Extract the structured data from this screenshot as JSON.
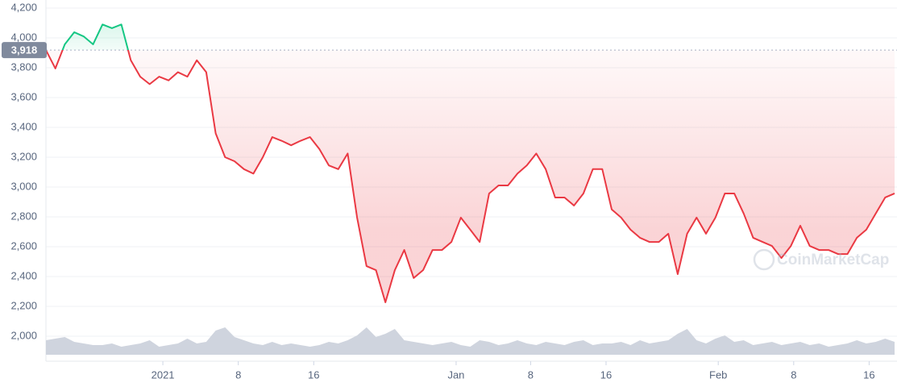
{
  "chart_data": {
    "type": "line",
    "watermark": "CoinMarketCap",
    "baseline": {
      "value": 3918,
      "label": "3,918"
    },
    "x": [
      0,
      1,
      2,
      3,
      4,
      5,
      6,
      7,
      8,
      9,
      10,
      11,
      12,
      13,
      14,
      15,
      16,
      17,
      18,
      19,
      20,
      21,
      22,
      23,
      24,
      25,
      26,
      27,
      28,
      29,
      30,
      31,
      32,
      33,
      34,
      35,
      36,
      37,
      38,
      39,
      40,
      41,
      42,
      43,
      44,
      45,
      46,
      47,
      48,
      49,
      50,
      51,
      52,
      53,
      54,
      55,
      56,
      57,
      58,
      59,
      60,
      61,
      62,
      63,
      64,
      65,
      66,
      67,
      68,
      69,
      70,
      71,
      72,
      73,
      74,
      75,
      76,
      77,
      78,
      79,
      80,
      81,
      82,
      83,
      84,
      85,
      86,
      87,
      88,
      89,
      90
    ],
    "series": [
      {
        "color": "#ea3943",
        "color_above": "#16c784",
        "values": [
          3918,
          3795,
          3957,
          4038,
          4010,
          3957,
          4090,
          4065,
          4090,
          3850,
          3740,
          3690,
          3740,
          3715,
          3770,
          3740,
          3850,
          3770,
          3360,
          3200,
          3173,
          3120,
          3090,
          3200,
          3335,
          3310,
          3280,
          3310,
          3335,
          3255,
          3145,
          3120,
          3225,
          2795,
          2470,
          2443,
          2227,
          2443,
          2578,
          2390,
          2443,
          2578,
          2578,
          2632,
          2795,
          2714,
          2632,
          2957,
          3011,
          3011,
          3090,
          3145,
          3225,
          3120,
          2930,
          2930,
          2876,
          2957,
          3120,
          3120,
          2850,
          2795,
          2714,
          2660,
          2632,
          2632,
          2687,
          2416,
          2687,
          2795,
          2687,
          2795,
          2957,
          2957,
          2822,
          2660,
          2632,
          2605,
          2524,
          2605,
          2741,
          2605,
          2578,
          2578,
          2551,
          2551,
          2660,
          2714,
          2822,
          2930,
          2957
        ]
      }
    ],
    "volume": {
      "color": "#cfd4de",
      "values": [
        18,
        20,
        22,
        16,
        14,
        12,
        12,
        14,
        10,
        12,
        14,
        18,
        10,
        12,
        14,
        20,
        14,
        16,
        30,
        34,
        22,
        18,
        14,
        12,
        16,
        12,
        14,
        12,
        10,
        12,
        16,
        14,
        18,
        24,
        34,
        22,
        26,
        32,
        18,
        16,
        14,
        12,
        14,
        16,
        12,
        10,
        18,
        16,
        12,
        14,
        18,
        14,
        12,
        16,
        14,
        12,
        16,
        18,
        12,
        14,
        14,
        16,
        12,
        18,
        14,
        16,
        18,
        26,
        32,
        18,
        14,
        20,
        24,
        16,
        18,
        12,
        14,
        16,
        12,
        14,
        16,
        12,
        14,
        10,
        12,
        14,
        18,
        14,
        16,
        20,
        16
      ]
    },
    "xlim": [
      0,
      90
    ],
    "xticks": [
      {
        "value": 12.4,
        "label": "2021"
      },
      {
        "value": 20.4,
        "label": "8"
      },
      {
        "value": 28.4,
        "label": "16"
      },
      {
        "value": 43.5,
        "label": "Jan"
      },
      {
        "value": 51.4,
        "label": "8"
      },
      {
        "value": 59.4,
        "label": "16"
      },
      {
        "value": 71.3,
        "label": "Feb"
      },
      {
        "value": 79.3,
        "label": "8"
      },
      {
        "value": 87.3,
        "label": "16"
      }
    ],
    "ylim": [
      2000,
      4200
    ],
    "yticks": [
      {
        "value": 4200,
        "label": "4,200"
      },
      {
        "value": 4000,
        "label": "4,000"
      },
      {
        "value": 3800,
        "label": "3,800"
      },
      {
        "value": 3600,
        "label": "3,600"
      },
      {
        "value": 3400,
        "label": "3,400"
      },
      {
        "value": 3200,
        "label": "3,200"
      },
      {
        "value": 3000,
        "label": "3,000"
      },
      {
        "value": 2800,
        "label": "2,800"
      },
      {
        "value": 2600,
        "label": "2,600"
      },
      {
        "value": 2400,
        "label": "2,400"
      },
      {
        "value": 2200,
        "label": "2,200"
      },
      {
        "value": 2000,
        "label": "2,000"
      }
    ],
    "grid": true
  }
}
